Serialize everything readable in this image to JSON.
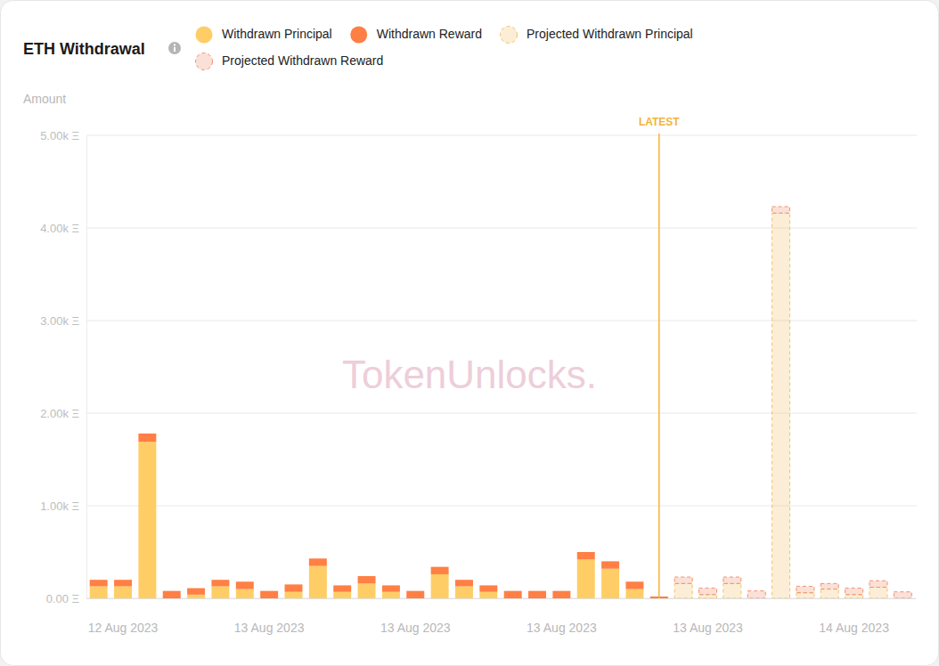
{
  "chart_data": {
    "type": "bar",
    "title": "ETH Withdrawal",
    "y_label": "Amount",
    "watermark": "TokenUnlocks.",
    "stacked": true,
    "grid": true,
    "legend": "top",
    "categories": [
      null,
      "12 Aug 2023",
      null,
      null,
      null,
      null,
      null,
      "13 Aug 2023",
      null,
      null,
      null,
      null,
      null,
      "13 Aug 2023",
      null,
      null,
      null,
      null,
      null,
      "13 Aug 2023",
      null,
      null,
      null,
      null,
      null,
      "13 Aug 2023",
      null,
      null,
      null,
      null,
      null,
      "14 Aug 2023",
      null,
      null
    ],
    "series": [
      {
        "name": "Withdrawn Principal",
        "color": "#ffcd66",
        "line_style": "solid",
        "values": [
          130,
          130,
          1690,
          0,
          40,
          130,
          100,
          0,
          70,
          350,
          70,
          160,
          70,
          0,
          260,
          130,
          70,
          0,
          0,
          0,
          420,
          320,
          100,
          0,
          null,
          null,
          null,
          null,
          null,
          null,
          null,
          null,
          null,
          null
        ]
      },
      {
        "name": "Withdrawn Reward",
        "color": "#ff7f45",
        "line_style": "solid",
        "values": [
          70,
          70,
          90,
          80,
          70,
          70,
          80,
          80,
          80,
          80,
          70,
          80,
          70,
          80,
          80,
          70,
          70,
          80,
          80,
          80,
          80,
          80,
          80,
          20,
          null,
          null,
          null,
          null,
          null,
          null,
          null,
          null,
          null,
          null
        ]
      },
      {
        "name": "Projected Withdrawn Principal",
        "color": "#f5c26b",
        "line_style": "dashed",
        "values": [
          null,
          null,
          null,
          null,
          null,
          null,
          null,
          null,
          null,
          null,
          null,
          null,
          null,
          null,
          null,
          null,
          null,
          null,
          null,
          null,
          null,
          null,
          null,
          null,
          160,
          40,
          160,
          0,
          4160,
          60,
          100,
          40,
          120,
          0
        ]
      },
      {
        "name": "Projected Withdrawn Reward",
        "color": "#f2916f",
        "line_style": "dashed",
        "values": [
          null,
          null,
          null,
          null,
          null,
          null,
          null,
          null,
          null,
          null,
          null,
          null,
          null,
          null,
          null,
          null,
          null,
          null,
          null,
          null,
          null,
          null,
          null,
          null,
          70,
          70,
          70,
          80,
          70,
          70,
          60,
          70,
          70,
          70
        ]
      }
    ],
    "annotations": [
      {
        "text": "LATEST",
        "x": 23
      }
    ],
    "ylim": [
      0,
      5000
    ],
    "yticks": [
      {
        "value": 0,
        "label": "0.00 Ξ"
      },
      {
        "value": 1000,
        "label": "1.00k Ξ"
      },
      {
        "value": 2000,
        "label": "2.00k Ξ"
      },
      {
        "value": 3000,
        "label": "3.00k Ξ"
      },
      {
        "value": 4000,
        "label": "4.00k Ξ"
      },
      {
        "value": 5000,
        "label": "5.00k Ξ"
      }
    ]
  }
}
